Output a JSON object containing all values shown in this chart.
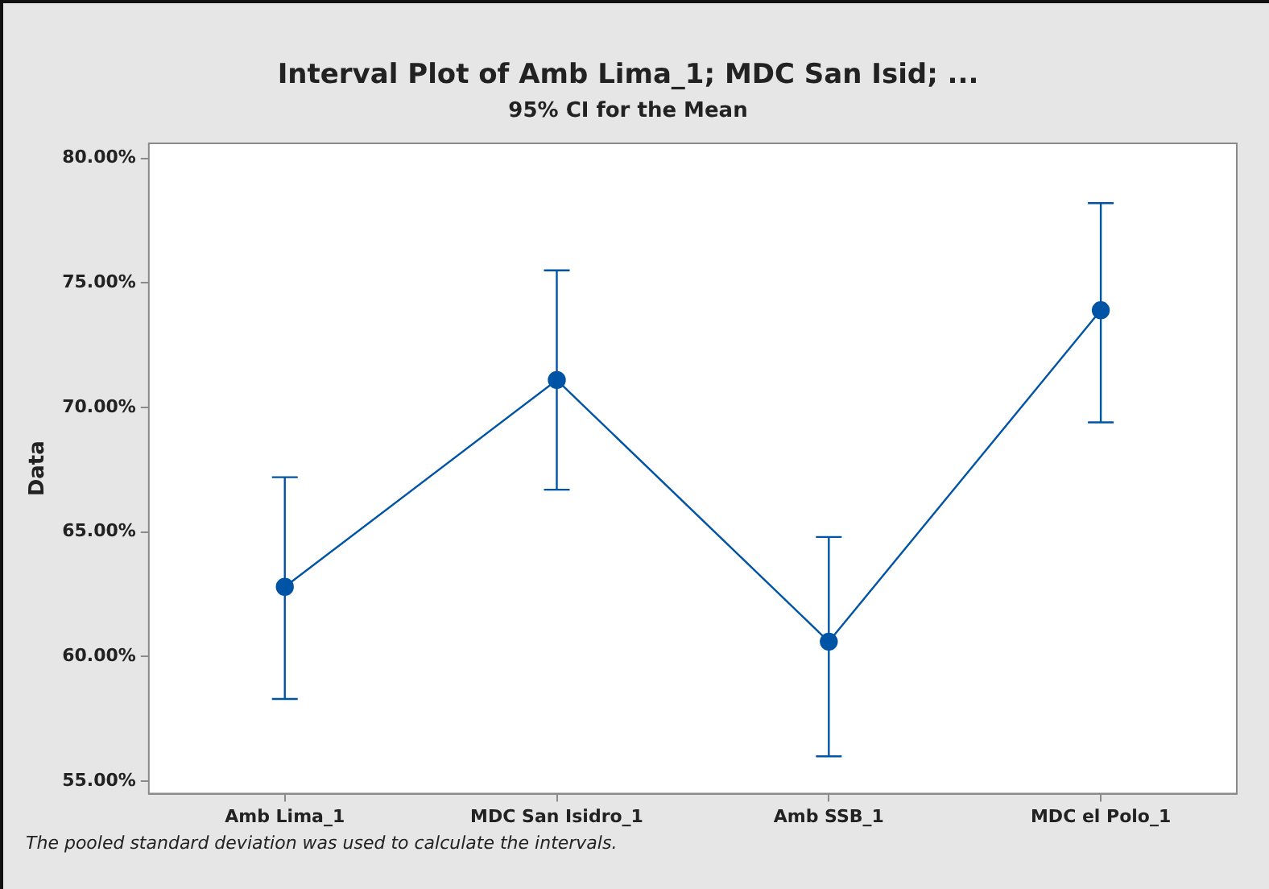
{
  "chart_data": {
    "type": "line",
    "title": "Interval Plot of Amb Lima_1; MDC San Isid; ...",
    "subtitle": "95% CI for the Mean",
    "ylabel": "Data",
    "categories": [
      "Amb Lima_1",
      "MDC San Isidro_1",
      "Amb SSB_1",
      "MDC el Polo_1"
    ],
    "series": [
      {
        "color": "#0054a6",
        "values": [
          62.8,
          71.1,
          60.6,
          73.9
        ],
        "errors": [
          [
            58.3,
            67.2
          ],
          [
            66.7,
            75.5
          ],
          [
            56.0,
            64.8
          ],
          [
            69.4,
            78.2
          ]
        ]
      }
    ],
    "ylim": [
      54.5,
      80.6
    ],
    "yticks": [
      {
        "value": 55,
        "label": "55.00%"
      },
      {
        "value": 60,
        "label": "60.00%"
      },
      {
        "value": 65,
        "label": "65.00%"
      },
      {
        "value": 70,
        "label": "70.00%"
      },
      {
        "value": 75,
        "label": "75.00%"
      },
      {
        "value": 80,
        "label": "80.00%"
      }
    ],
    "legend": false,
    "marker": "circle",
    "line_style": "solid",
    "annotations": [
      "The pooled standard deviation was used to calculate the intervals."
    ]
  }
}
